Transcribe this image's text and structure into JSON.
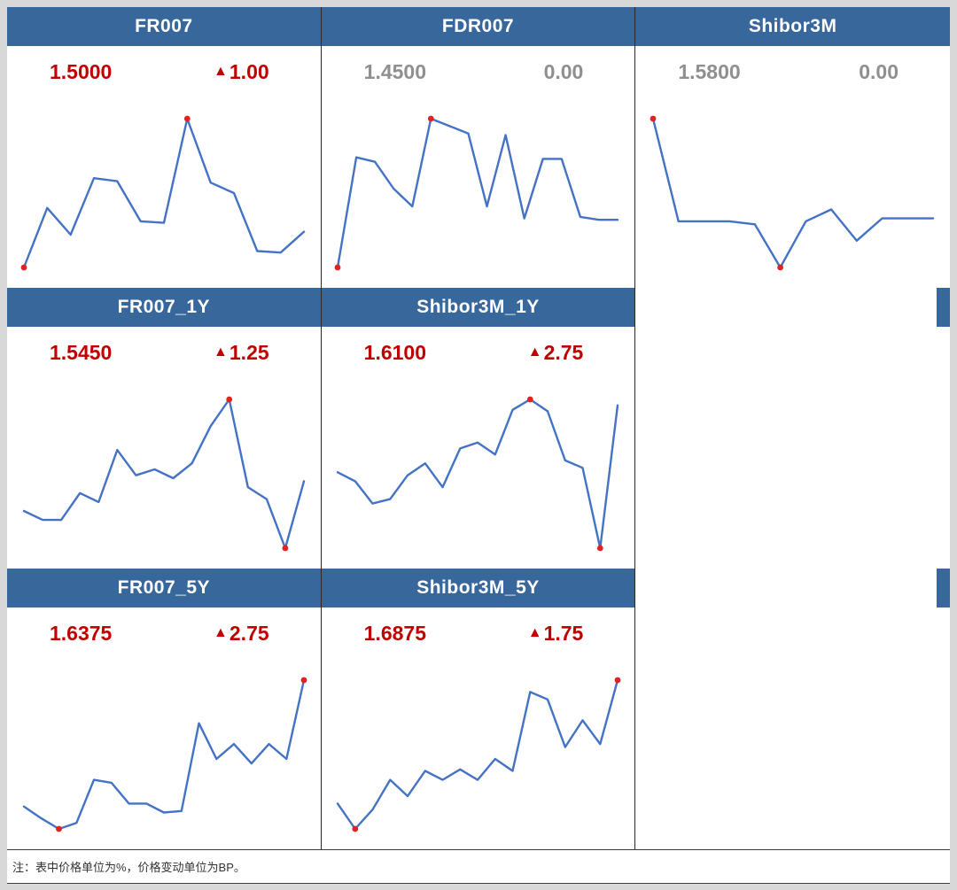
{
  "note": "注：表中价格单位为%，价格变动单位为BP。",
  "colors": {
    "header_bg": "#38679b",
    "line": "#4472c4",
    "dot": "#e02222",
    "up": "#c00000",
    "flat": "#8f8f8f"
  },
  "chart_data": [
    {
      "type": "line",
      "title": "FR007",
      "price": "1.5000",
      "change": "1.00",
      "arrow": "▲",
      "direction": "up",
      "values": [
        0.0,
        0.4,
        0.22,
        0.6,
        0.58,
        0.31,
        0.3,
        1.0,
        0.57,
        0.5,
        0.11,
        0.1,
        0.24
      ],
      "dot_indices": [
        0,
        7
      ]
    },
    {
      "type": "line",
      "title": "FDR007",
      "price": "1.4500",
      "change": "0.00",
      "arrow": "",
      "direction": "flat",
      "values": [
        0.0,
        0.74,
        0.71,
        0.53,
        0.41,
        1.0,
        0.95,
        0.9,
        0.41,
        0.89,
        0.33,
        0.73,
        0.73,
        0.34,
        0.32,
        0.32
      ],
      "dot_indices": [
        0,
        5
      ]
    },
    {
      "type": "line",
      "title": "Shibor3M",
      "price": "1.5800",
      "change": "0.00",
      "arrow": "",
      "direction": "flat",
      "values": [
        1.0,
        0.31,
        0.31,
        0.31,
        0.29,
        0.0,
        0.31,
        0.39,
        0.18,
        0.33,
        0.33,
        0.33
      ],
      "dot_indices": [
        0,
        5
      ]
    },
    {
      "type": "line",
      "title": "FR007_1Y",
      "price": "1.5450",
      "change": "1.25",
      "arrow": "▲",
      "direction": "up",
      "values": [
        0.25,
        0.19,
        0.19,
        0.37,
        0.31,
        0.66,
        0.49,
        0.53,
        0.47,
        0.57,
        0.82,
        1.0,
        0.41,
        0.33,
        0.0,
        0.45
      ],
      "dot_indices": [
        11,
        14
      ]
    },
    {
      "type": "line",
      "title": "Shibor3M_1Y",
      "price": "1.6100",
      "change": "2.75",
      "arrow": "▲",
      "direction": "up",
      "values": [
        0.51,
        0.45,
        0.3,
        0.33,
        0.49,
        0.57,
        0.41,
        0.67,
        0.71,
        0.63,
        0.93,
        1.0,
        0.92,
        0.59,
        0.54,
        0.0,
        0.96
      ],
      "dot_indices": [
        11,
        15
      ]
    },
    {
      "type": "line",
      "title": "FR007_5Y",
      "price": "1.6375",
      "change": "2.75",
      "arrow": "▲",
      "direction": "up",
      "values": [
        0.15,
        0.07,
        0.0,
        0.04,
        0.33,
        0.31,
        0.17,
        0.17,
        0.11,
        0.12,
        0.71,
        0.47,
        0.57,
        0.44,
        0.57,
        0.47,
        1.0
      ],
      "dot_indices": [
        2,
        16
      ]
    },
    {
      "type": "line",
      "title": "Shibor3M_5Y",
      "price": "1.6875",
      "change": "1.75",
      "arrow": "▲",
      "direction": "up",
      "values": [
        0.17,
        0.0,
        0.13,
        0.33,
        0.22,
        0.39,
        0.33,
        0.4,
        0.33,
        0.47,
        0.39,
        0.92,
        0.87,
        0.55,
        0.73,
        0.57,
        1.0
      ],
      "dot_indices": [
        1,
        16
      ]
    }
  ]
}
